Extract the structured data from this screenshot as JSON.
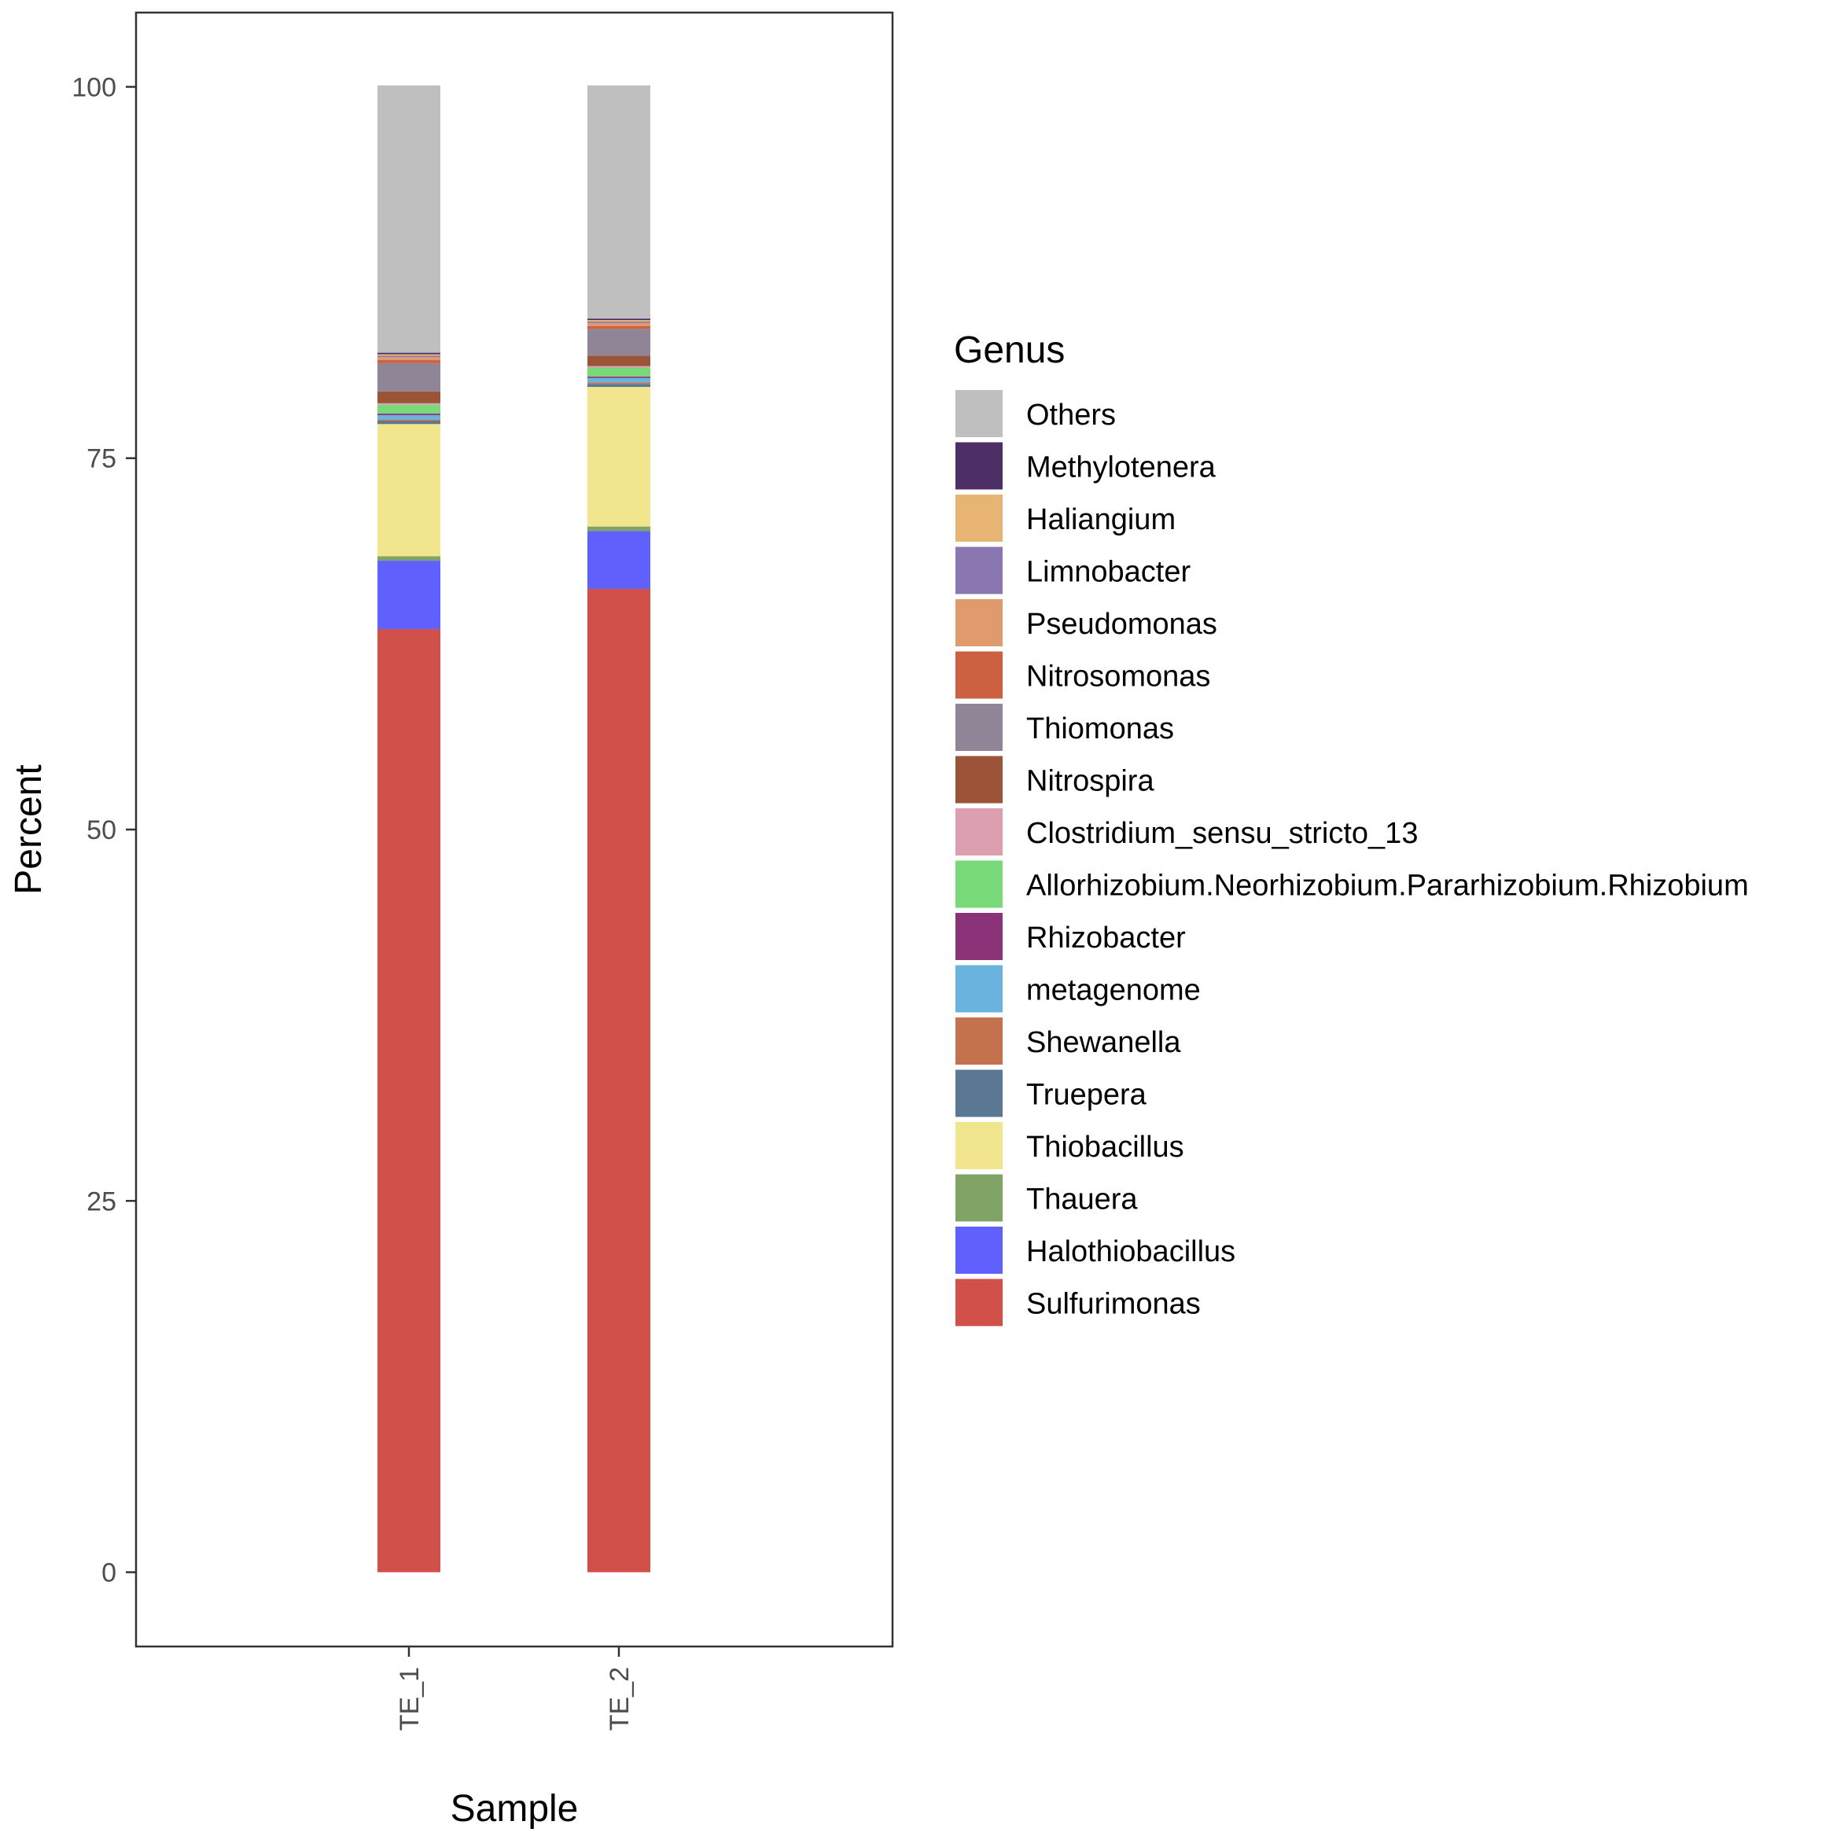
{
  "chart_data": {
    "type": "bar",
    "stacked": true,
    "xlabel": "Sample",
    "ylabel": "Percent",
    "ylim": [
      -5,
      105
    ],
    "yticks": [
      0,
      25,
      50,
      75,
      100
    ],
    "categories": [
      "TE_1",
      "TE_2"
    ],
    "legend": {
      "title": "Genus",
      "position": "right"
    },
    "series": [
      {
        "name": "Sulfurimonas",
        "color": "#d1514a",
        "values": [
          63.5,
          66.2
        ]
      },
      {
        "name": "Halothiobacillus",
        "color": "#6060ff",
        "values": [
          4.6,
          3.9
        ]
      },
      {
        "name": "Thauera",
        "color": "#7fa466",
        "values": [
          0.3,
          0.3
        ]
      },
      {
        "name": "Thiobacillus",
        "color": "#f1e68d",
        "values": [
          8.9,
          9.4
        ]
      },
      {
        "name": "Truepera",
        "color": "#5a7794",
        "values": [
          0.2,
          0.2
        ]
      },
      {
        "name": "Shewanella",
        "color": "#c4714d",
        "values": [
          0.1,
          0.1
        ]
      },
      {
        "name": "metagenome",
        "color": "#6ab3de",
        "values": [
          0.3,
          0.3
        ]
      },
      {
        "name": "Rhizobacter",
        "color": "#8b3378",
        "values": [
          0.1,
          0.1
        ]
      },
      {
        "name": "Allorhizobium.Neorhizobium.Pararhizobium.Rhizobium",
        "color": "#77d977",
        "values": [
          0.6,
          0.6
        ]
      },
      {
        "name": "Clostridium_sensu_stricto_13",
        "color": "#dc9fb0",
        "values": [
          0.1,
          0.1
        ]
      },
      {
        "name": "Nitrospira",
        "color": "#9b5438",
        "values": [
          0.8,
          0.7
        ]
      },
      {
        "name": "Thiomonas",
        "color": "#8f8597",
        "values": [
          1.9,
          1.8
        ]
      },
      {
        "name": "Nitrosomonas",
        "color": "#cd6040",
        "values": [
          0.2,
          0.2
        ]
      },
      {
        "name": "Pseudomonas",
        "color": "#df9a6d",
        "values": [
          0.2,
          0.2
        ]
      },
      {
        "name": "Limnobacter",
        "color": "#8a77b2",
        "values": [
          0.1,
          0.1
        ]
      },
      {
        "name": "Haliangium",
        "color": "#e8b474",
        "values": [
          0.1,
          0.1
        ]
      },
      {
        "name": "Methylotenera",
        "color": "#4d2e66",
        "values": [
          0.1,
          0.1
        ]
      },
      {
        "name": "Others",
        "color": "#bfbfbf",
        "values": [
          18.0,
          15.7
        ]
      }
    ]
  }
}
